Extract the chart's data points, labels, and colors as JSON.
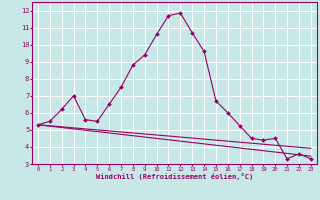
{
  "xlabel": "Windchill (Refroidissement éolien,°C)",
  "background_color": "#c8e8e8",
  "grid_color": "#ffffff",
  "line_color": "#990066",
  "xlim": [
    -0.5,
    23.5
  ],
  "ylim": [
    3,
    12.5
  ],
  "xticks": [
    0,
    1,
    2,
    3,
    4,
    5,
    6,
    7,
    8,
    9,
    10,
    11,
    12,
    13,
    14,
    15,
    16,
    17,
    18,
    19,
    20,
    21,
    22,
    23
  ],
  "yticks": [
    3,
    4,
    5,
    6,
    7,
    8,
    9,
    10,
    11,
    12
  ],
  "series_main": [
    5.3,
    5.5,
    6.2,
    7.0,
    5.6,
    5.5,
    6.5,
    7.5,
    8.8,
    9.4,
    10.6,
    11.7,
    11.85,
    10.7,
    9.6,
    6.7,
    6.0,
    5.25,
    4.5,
    4.4,
    4.5,
    3.3,
    3.6,
    3.3
  ],
  "series_linear1": [
    5.3,
    5.22,
    5.14,
    5.06,
    4.98,
    4.9,
    4.82,
    4.74,
    4.66,
    4.58,
    4.5,
    4.42,
    4.34,
    4.26,
    4.18,
    4.1,
    4.02,
    3.94,
    3.86,
    3.78,
    3.7,
    3.62,
    3.54,
    3.46
  ],
  "series_linear2": [
    5.3,
    5.24,
    5.18,
    5.12,
    5.06,
    5.0,
    4.94,
    4.88,
    4.82,
    4.76,
    4.7,
    4.64,
    4.58,
    4.52,
    4.46,
    4.4,
    4.34,
    4.28,
    4.22,
    4.16,
    4.1,
    4.04,
    3.98,
    3.92
  ]
}
